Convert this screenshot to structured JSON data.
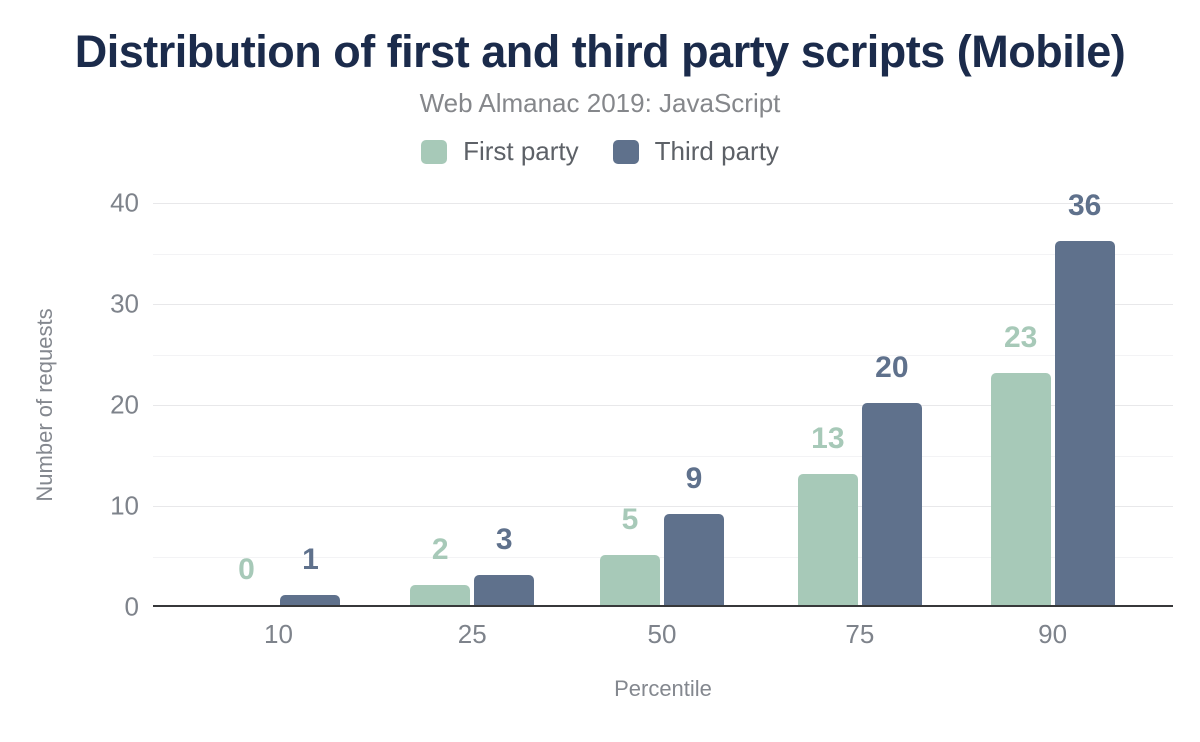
{
  "title": "Distribution of first and third party scripts (Mobile)",
  "subtitle": "Web Almanac 2019: JavaScript",
  "legend": [
    {
      "label": "First party",
      "color": "#a7c9b8"
    },
    {
      "label": "Third party",
      "color": "#5f718c"
    }
  ],
  "colors": {
    "title_text": "#1b2b4b",
    "subtitle_text": "#85878b",
    "axis_text": "#7e838b",
    "first_party": "#a7c9b8",
    "third_party": "#5f718c",
    "gridline": "#e8e8ea",
    "axis_line": "#37383a",
    "background": "#ffffff"
  },
  "chart_data": {
    "type": "bar",
    "title": "Distribution of first and third party scripts (Mobile)",
    "subtitle": "Web Almanac 2019: JavaScript",
    "categories": [
      "10",
      "25",
      "50",
      "75",
      "90"
    ],
    "series": [
      {
        "name": "First party",
        "color": "#a7c9b8",
        "values": [
          0,
          2,
          5,
          13,
          23
        ]
      },
      {
        "name": "Third party",
        "color": "#5f718c",
        "values": [
          1,
          3,
          9,
          20,
          36
        ]
      }
    ],
    "xlabel": "Percentile",
    "ylabel": "Number of requests",
    "ylim": [
      0,
      40
    ],
    "yticks": [
      0,
      10,
      20,
      30,
      40
    ],
    "grid": "horizontal, major solid + faint minor between ticks",
    "legend_position": "top center",
    "value_labels": "above bars, colored to match series"
  }
}
